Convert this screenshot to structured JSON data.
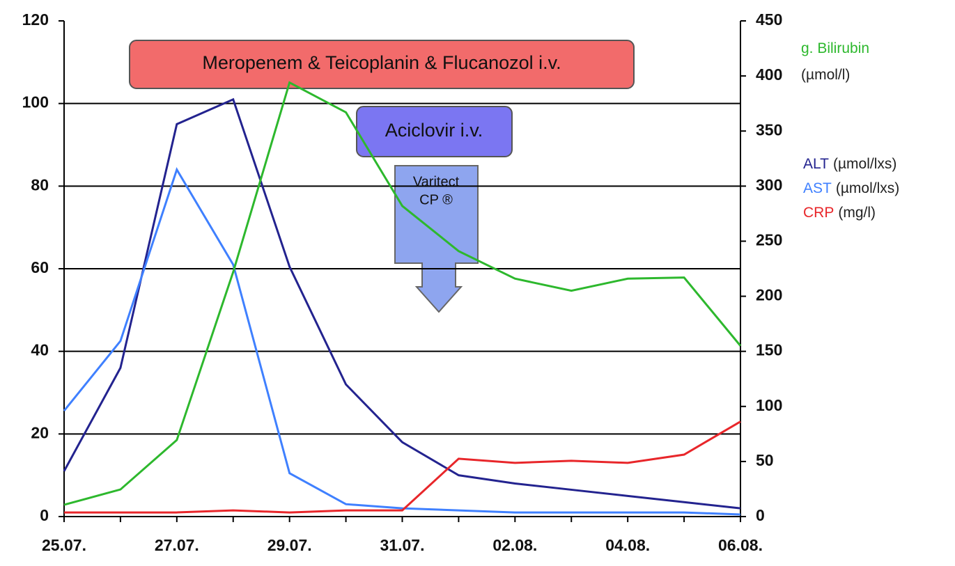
{
  "chart_data": {
    "type": "line",
    "categories": [
      "25.07.",
      null,
      "27.07.",
      null,
      "29.07.",
      null,
      "31.07.",
      null,
      "02.08.",
      null,
      "04.08.",
      null,
      "06.08."
    ],
    "series": [
      {
        "name": "ALT",
        "unit": "(µmol/lxs)",
        "color": "#23238f",
        "values": [
          11,
          36,
          95,
          101,
          60.5,
          32,
          18,
          10,
          8,
          6.5,
          5,
          3.5,
          2
        ]
      },
      {
        "name": "AST",
        "unit": "(µmol/lxs)",
        "color": "#3f80ff",
        "values": [
          25.6,
          42.5,
          84,
          61,
          10.5,
          3,
          2,
          1.5,
          1,
          1,
          1,
          1,
          0.5
        ]
      },
      {
        "name": "CRP",
        "unit": "(mg/l)",
        "color": "#e8262a",
        "values": [
          1,
          1,
          1,
          1.5,
          1,
          1.5,
          1.5,
          14,
          13,
          13.5,
          13,
          15,
          23
        ]
      },
      {
        "name": "g. Bilirubin",
        "unit": "(µmol/l)",
        "color": "#2db82d",
        "axis": "y2",
        "values": [
          10.7,
          24.6,
          69.5,
          222,
          394,
          367,
          282,
          241,
          216,
          205,
          216,
          217,
          155
        ]
      }
    ],
    "ylim": [
      0,
      120
    ],
    "yticks": [
      0,
      20,
      40,
      60,
      80,
      100,
      120
    ],
    "y2lim": [
      0,
      450
    ],
    "y2ticks": [
      0,
      50,
      100,
      150,
      200,
      250,
      300,
      350,
      400,
      450
    ],
    "grid": true,
    "annotations": [
      {
        "lines": [
          "Meropenem & Teicoplanin & Flucanozol i.v."
        ]
      },
      {
        "lines": [
          "Aciclovir i.v."
        ]
      },
      {
        "lines": [
          "Varitect",
          "CP ®"
        ]
      }
    ]
  }
}
